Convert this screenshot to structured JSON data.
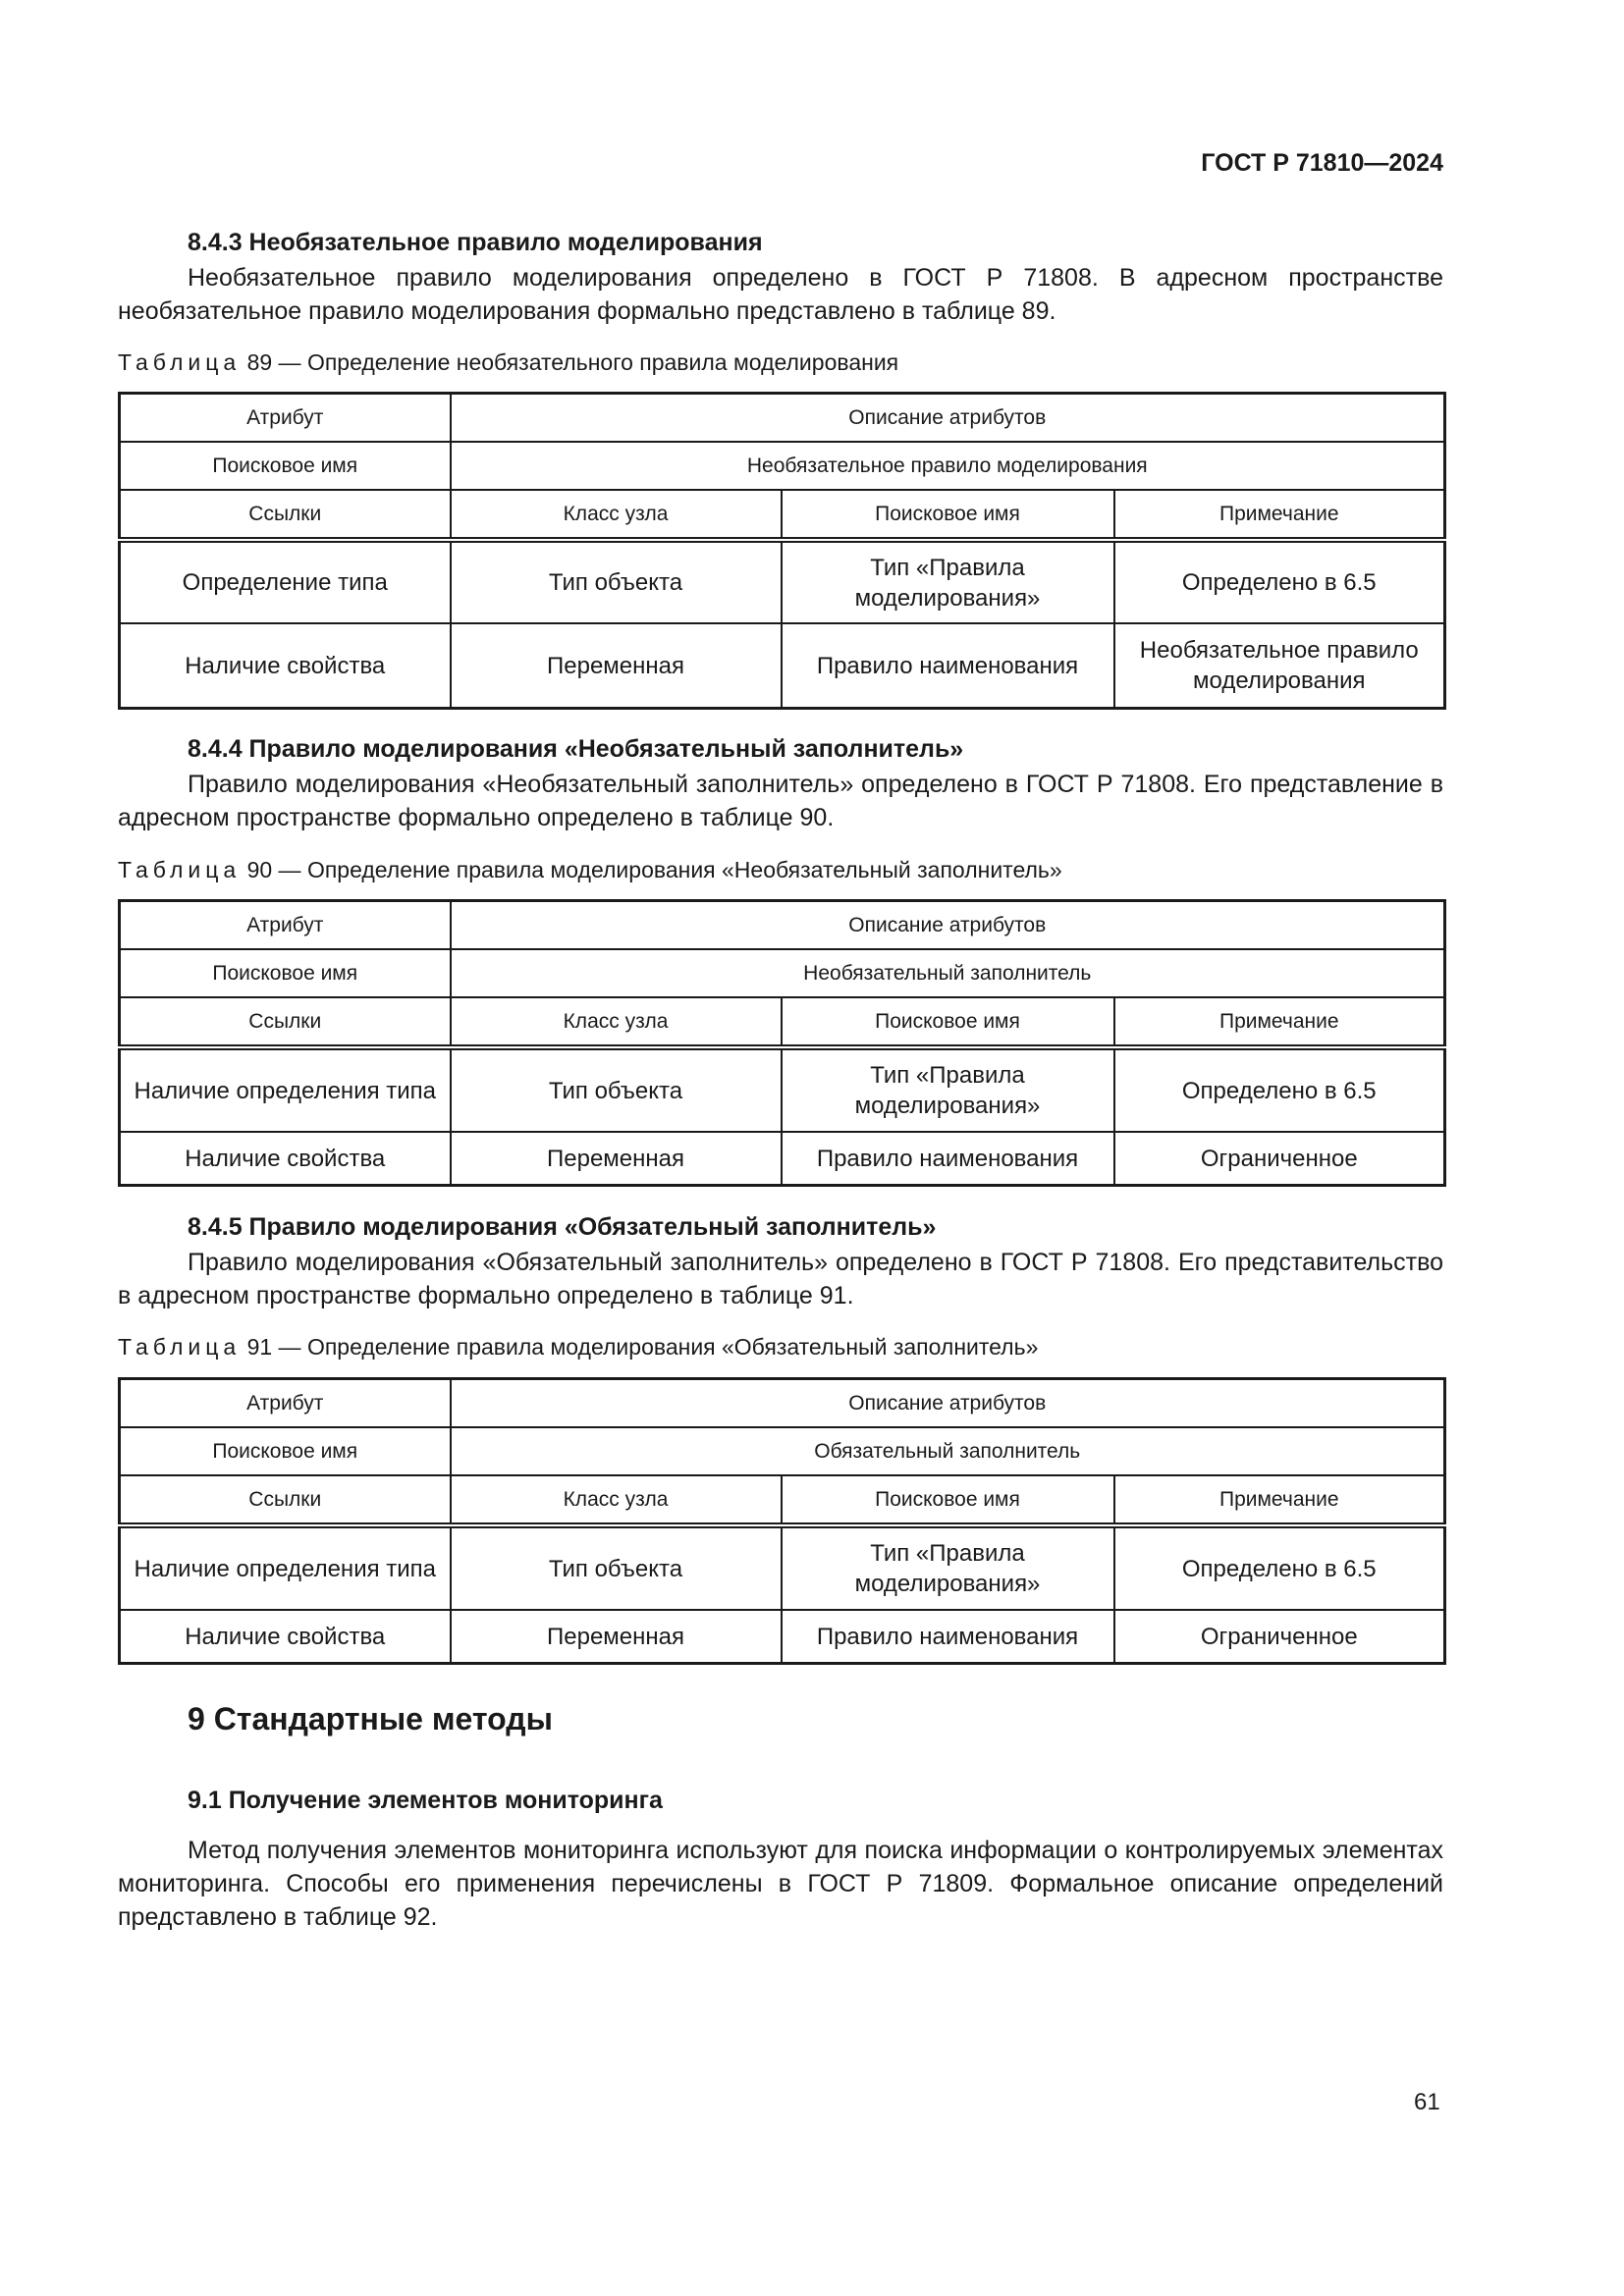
{
  "header": {
    "doc_id": "ГОСТ Р 71810—2024"
  },
  "sections": [
    {
      "heading": "8.4.3 Необязательное правило моделирования",
      "paragraph": "Необязательное правило моделирования определено в ГОСТ Р 71808. В адресном пространстве необязательное правило моделирования формально представлено в таблице 89.",
      "caption_label": "Таблица",
      "caption_text": "89 — Определение необязательного правила моделирования",
      "table": {
        "attr_header": "Атрибут",
        "desc_header": "Описание атрибутов",
        "browse_label": "Поисковое имя",
        "browse_value": "Необязательное правило моделирования",
        "columns": [
          "Ссылки",
          "Класс узла",
          "Поисковое имя",
          "Примечание"
        ],
        "rows": [
          [
            "Определение типа",
            "Тип объекта",
            "Тип «Правила моделирования»",
            "Определено в 6.5"
          ],
          [
            "Наличие свойства",
            "Переменная",
            "Правило наименования",
            "Необязательное правило моделирования"
          ]
        ]
      }
    },
    {
      "heading": "8.4.4 Правило моделирования «Необязательный заполнитель»",
      "paragraph": "Правило моделирования «Необязательный заполнитель» определено в ГОСТ Р 71808. Его представление в адресном пространстве формально определено в таблице 90.",
      "caption_label": "Таблица",
      "caption_text": "90 — Определение правила моделирования «Необязательный заполнитель»",
      "table": {
        "attr_header": "Атрибут",
        "desc_header": "Описание атрибутов",
        "browse_label": "Поисковое имя",
        "browse_value": "Необязательный заполнитель",
        "columns": [
          "Ссылки",
          "Класс узла",
          "Поисковое имя",
          "Примечание"
        ],
        "rows": [
          [
            "Наличие определения типа",
            "Тип объекта",
            "Тип «Правила моделирования»",
            "Определено в 6.5"
          ],
          [
            "Наличие свойства",
            "Переменная",
            "Правило наименования",
            "Ограниченное"
          ]
        ]
      }
    },
    {
      "heading": "8.4.5 Правило моделирования «Обязательный заполнитель»",
      "paragraph": "Правило моделирования «Обязательный заполнитель» определено в ГОСТ Р 71808. Его представительство в адресном пространстве формально определено в таблице 91.",
      "caption_label": "Таблица",
      "caption_text": "91 — Определение правила моделирования «Обязательный заполнитель»",
      "table": {
        "attr_header": "Атрибут",
        "desc_header": "Описание атрибутов",
        "browse_label": "Поисковое имя",
        "browse_value": "Обязательный заполнитель",
        "columns": [
          "Ссылки",
          "Класс узла",
          "Поисковое имя",
          "Примечание"
        ],
        "rows": [
          [
            "Наличие определения типа",
            "Тип объекта",
            "Тип «Правила моделирования»",
            "Определено в 6.5"
          ],
          [
            "Наличие свойства",
            "Переменная",
            "Правило наименования",
            "Ограниченное"
          ]
        ]
      }
    }
  ],
  "chapter": {
    "heading": "9 Стандартные методы",
    "subheading": "9.1 Получение элементов мониторинга",
    "paragraph": "Метод получения элементов мониторинга используют для поиска информации о контролируемых элементах мониторинга. Способы его применения перечислены в ГОСТ Р 71809. Формальное описание определений представлено в таблице 92."
  },
  "page_number": "61"
}
